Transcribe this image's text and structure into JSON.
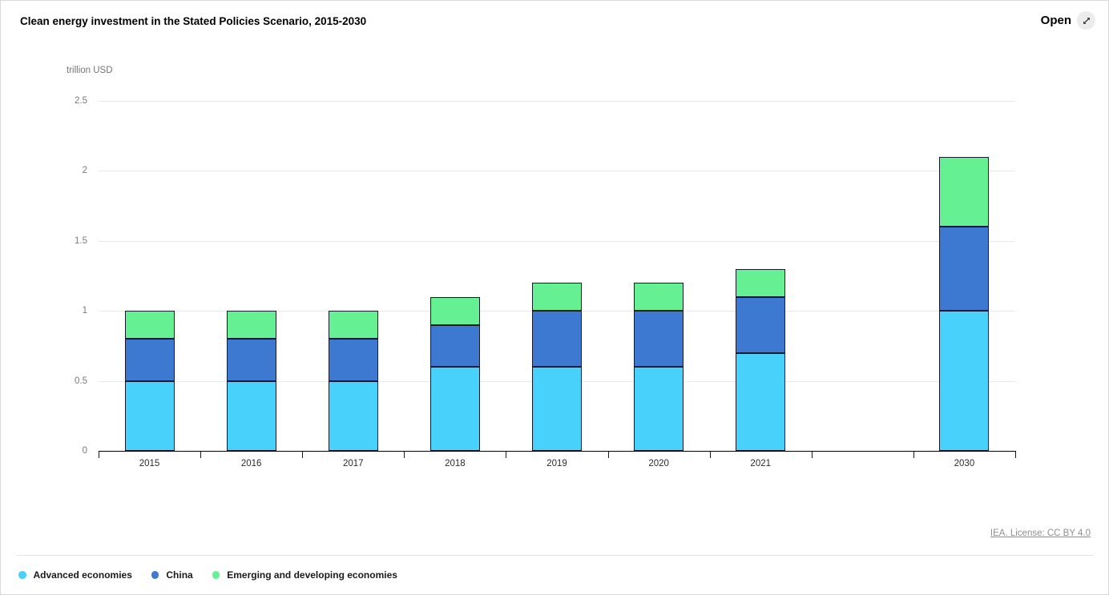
{
  "header": {
    "open_label": "Open",
    "open_icon": "expand-diagonal-arrow-icon"
  },
  "chart_data": {
    "type": "bar",
    "stacked": true,
    "title": "Clean energy investment in the Stated Policies Scenario, 2015-2030",
    "ylabel": "trillion USD",
    "xlabel": "",
    "ylim": [
      0,
      2.5
    ],
    "yticks": [
      0,
      0.5,
      1,
      1.5,
      2,
      2.5
    ],
    "grid": true,
    "legend_position": "bottom-left",
    "categories": [
      "2015",
      "2016",
      "2017",
      "2018",
      "2019",
      "2020",
      "2021",
      "2030"
    ],
    "category_slots": [
      0,
      1,
      2,
      3,
      4,
      5,
      6,
      8
    ],
    "slot_count": 9,
    "series": [
      {
        "name": "Advanced economies",
        "color": "#47d1fb",
        "values": [
          0.5,
          0.5,
          0.5,
          0.6,
          0.6,
          0.6,
          0.7,
          1.0
        ]
      },
      {
        "name": "China",
        "color": "#3d78d1",
        "values": [
          0.3,
          0.3,
          0.3,
          0.3,
          0.4,
          0.4,
          0.4,
          0.6
        ]
      },
      {
        "name": "Emerging and developing economies",
        "color": "#66f094",
        "values": [
          0.2,
          0.2,
          0.2,
          0.2,
          0.2,
          0.2,
          0.2,
          0.5
        ]
      }
    ],
    "totals": [
      1.0,
      1.0,
      1.0,
      1.1,
      1.2,
      1.2,
      1.3,
      2.1
    ],
    "bar_outline_color": "#151a2d"
  },
  "footer": {
    "source_label": "IEA. License: CC BY 4.0"
  }
}
